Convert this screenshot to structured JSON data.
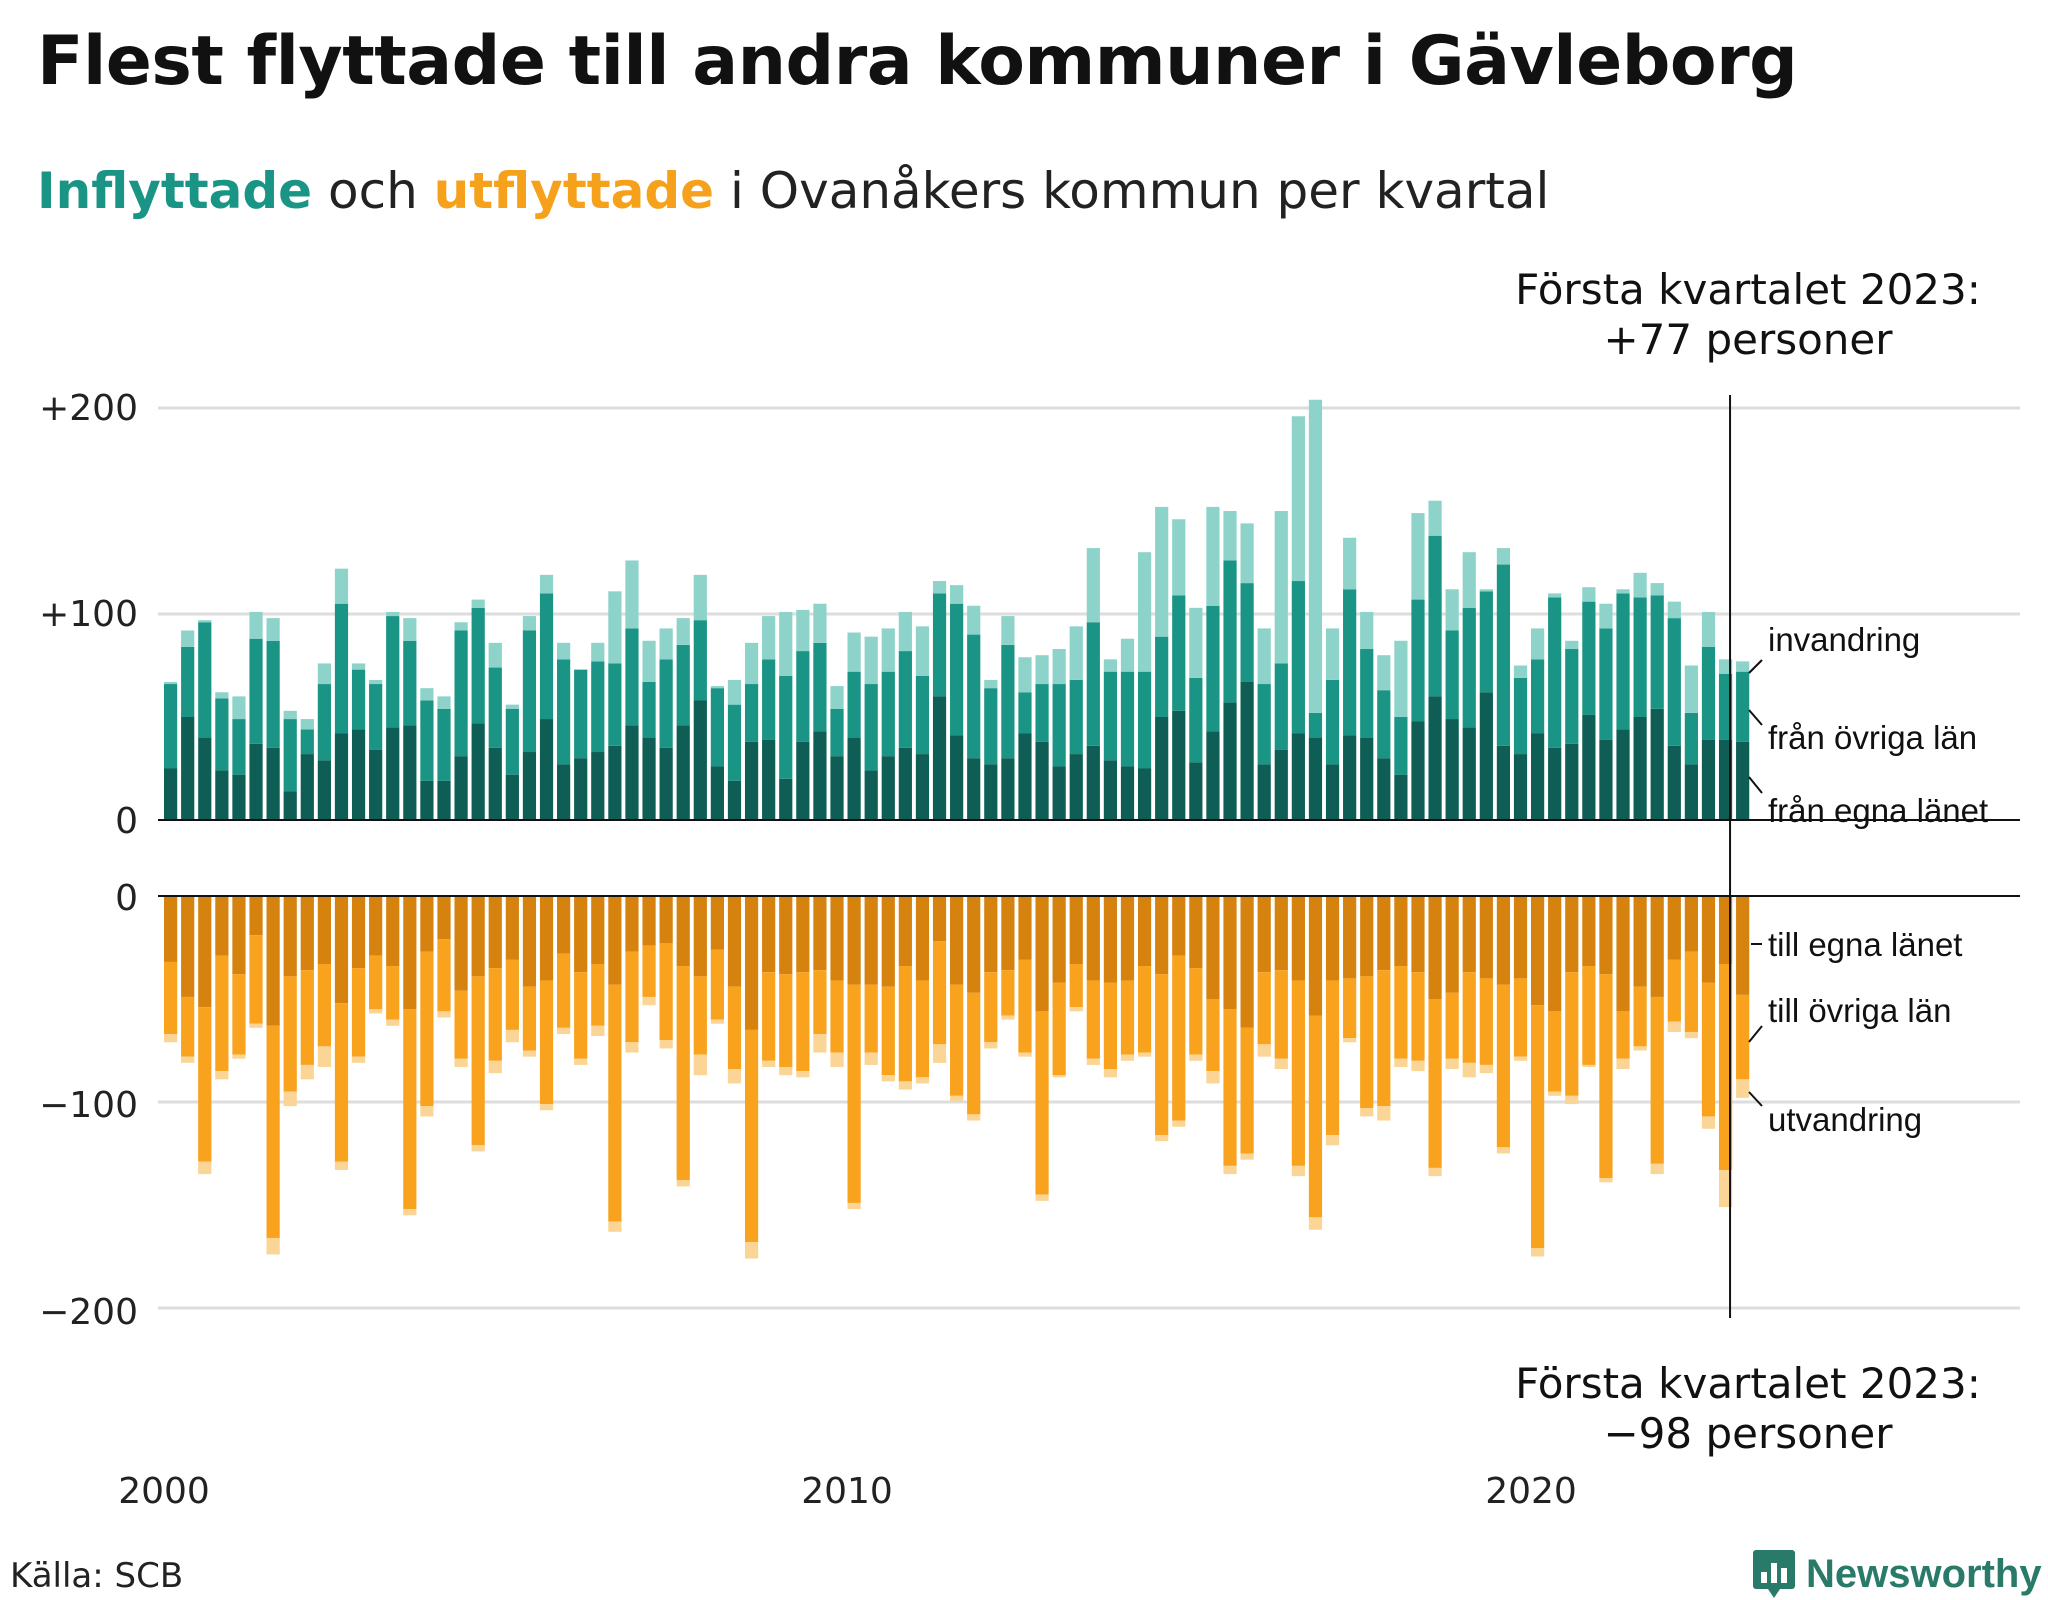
{
  "title": "Flest flyttade till andra kommuner i Gävleborg",
  "subtitle": {
    "in_word": "Inflyttade",
    "och": " och ",
    "out_word": "utflyttade",
    "rest": " i Ovanåkers kommun per kvartal"
  },
  "source": "Källa: SCB",
  "logo_text": "Newsworthy",
  "colors": {
    "in_egna": "#0e5e55",
    "in_ovriga": "#1a9485",
    "in_inv": "#8dd3ca",
    "out_egna": "#d6820f",
    "out_ovriga": "#f8a21d",
    "out_utv": "#fbd596",
    "grid": "#dddddd",
    "logo": "#2a7a69"
  },
  "chart_data": {
    "type": "bar",
    "start_year": 2000,
    "start_quarter": 1,
    "ylim_top": [
      0,
      200
    ],
    "ylim_bottom": [
      -200,
      0
    ],
    "grid": true,
    "y_ticks_top": [
      "0",
      "+100",
      "+200"
    ],
    "y_ticks_bottom": [
      "0",
      "−100",
      "−200"
    ],
    "x_ticks": [
      "2000",
      "2010",
      "2020"
    ],
    "annotation_top": {
      "line1": "Första kvartalet 2023:",
      "line2": "+77 personer"
    },
    "annotation_bottom": {
      "line1": "Första kvartalet 2023:",
      "line2": "−98 personer"
    },
    "series_in_labels": [
      "invandring",
      "från övriga län",
      "från egna länet"
    ],
    "series_out_labels": [
      "till egna länet",
      "till övriga län",
      "utvandring"
    ],
    "inflyttade": {
      "fran_egna_lanet": [
        25,
        50,
        40,
        24,
        22,
        37,
        35,
        14,
        32,
        29,
        42,
        44,
        34,
        45,
        46,
        19,
        19,
        31,
        47,
        35,
        22,
        33,
        49,
        27,
        30,
        33,
        36,
        46,
        40,
        35,
        46,
        58,
        26,
        19,
        38,
        39,
        20,
        38,
        43,
        31,
        40,
        24,
        31,
        35,
        32,
        60,
        41,
        30,
        27,
        30,
        42,
        38,
        26,
        32,
        36,
        29,
        26,
        25,
        50,
        53,
        28,
        43,
        57,
        67,
        27,
        34,
        42,
        40,
        27,
        41,
        40,
        30,
        22,
        48,
        60,
        49,
        45,
        62,
        36,
        32,
        42,
        35,
        37,
        51,
        39,
        44,
        50,
        54,
        36,
        27,
        39,
        39,
        38
      ],
      "fran_ovriga_lan": [
        41,
        34,
        56,
        35,
        27,
        51,
        52,
        35,
        12,
        37,
        63,
        29,
        32,
        54,
        41,
        39,
        35,
        61,
        56,
        39,
        32,
        59,
        61,
        51,
        43,
        44,
        40,
        47,
        27,
        43,
        39,
        39,
        38,
        37,
        28,
        39,
        50,
        44,
        43,
        23,
        32,
        42,
        41,
        47,
        38,
        50,
        64,
        60,
        37,
        55,
        20,
        28,
        40,
        36,
        60,
        43,
        46,
        47,
        39,
        56,
        41,
        61,
        69,
        48,
        39,
        42,
        74,
        12,
        41,
        71,
        43,
        33,
        28,
        59,
        78,
        43,
        58,
        49,
        88,
        37,
        36,
        73,
        46,
        55,
        54,
        66,
        58,
        55,
        62,
        25,
        45,
        32,
        34
      ],
      "invandring": [
        1,
        8,
        1,
        3,
        11,
        13,
        11,
        4,
        5,
        10,
        17,
        3,
        2,
        2,
        11,
        6,
        6,
        4,
        4,
        12,
        2,
        7,
        9,
        8,
        0,
        9,
        35,
        33,
        20,
        15,
        13,
        22,
        1,
        12,
        20,
        21,
        31,
        20,
        19,
        11,
        19,
        23,
        21,
        19,
        24,
        6,
        9,
        14,
        4,
        14,
        17,
        14,
        17,
        26,
        36,
        6,
        16,
        58,
        63,
        37,
        34,
        48,
        24,
        29,
        27,
        74,
        80,
        152,
        25,
        25,
        18,
        17,
        37,
        42,
        17,
        20,
        27,
        1,
        8,
        6,
        15,
        2,
        4,
        7,
        12,
        2,
        12,
        6,
        8,
        23,
        17,
        7,
        5
      ]
    },
    "utflyttade": {
      "till_egna_lanet": [
        32,
        49,
        54,
        29,
        38,
        19,
        63,
        39,
        36,
        33,
        52,
        35,
        29,
        34,
        55,
        27,
        21,
        46,
        39,
        35,
        31,
        44,
        41,
        28,
        37,
        33,
        43,
        27,
        24,
        23,
        34,
        39,
        26,
        44,
        65,
        37,
        38,
        37,
        36,
        41,
        43,
        43,
        44,
        34,
        41,
        22,
        43,
        47,
        37,
        36,
        31,
        56,
        42,
        33,
        41,
        42,
        41,
        34,
        38,
        29,
        35,
        50,
        55,
        64,
        37,
        36,
        41,
        58,
        41,
        40,
        39,
        36,
        34,
        37,
        50,
        47,
        37,
        40,
        43,
        40,
        53,
        56,
        37,
        34,
        38,
        56,
        44,
        49,
        31,
        27,
        42,
        33,
        48
      ],
      "till_ovriga_lan": [
        35,
        29,
        75,
        56,
        39,
        43,
        103,
        56,
        46,
        40,
        77,
        43,
        26,
        26,
        97,
        75,
        35,
        33,
        82,
        45,
        34,
        31,
        60,
        36,
        42,
        30,
        115,
        44,
        25,
        47,
        104,
        38,
        34,
        40,
        103,
        43,
        45,
        48,
        31,
        35,
        106,
        33,
        43,
        56,
        47,
        50,
        54,
        59,
        34,
        22,
        45,
        89,
        45,
        21,
        38,
        42,
        36,
        42,
        78,
        80,
        42,
        35,
        76,
        61,
        35,
        43,
        90,
        98,
        75,
        29,
        64,
        66,
        45,
        43,
        82,
        32,
        44,
        42,
        79,
        38,
        118,
        39,
        60,
        48,
        99,
        23,
        29,
        81,
        30,
        39,
        65,
        100,
        41
      ],
      "utvandring": [
        4,
        3,
        6,
        4,
        2,
        2,
        8,
        7,
        7,
        10,
        4,
        3,
        2,
        3,
        3,
        5,
        3,
        4,
        3,
        6,
        6,
        3,
        3,
        3,
        3,
        5,
        5,
        5,
        4,
        4,
        3,
        10,
        2,
        7,
        8,
        3,
        4,
        3,
        9,
        7,
        3,
        6,
        3,
        4,
        3,
        9,
        3,
        3,
        3,
        2,
        2,
        3,
        1,
        2,
        3,
        4,
        3,
        2,
        3,
        3,
        3,
        6,
        4,
        3,
        6,
        5,
        5,
        6,
        5,
        2,
        4,
        7,
        4,
        5,
        4,
        5,
        7,
        4,
        3,
        2,
        4,
        2,
        4,
        1,
        2,
        5,
        2,
        5,
        5,
        3,
        6,
        18,
        9
      ]
    }
  }
}
